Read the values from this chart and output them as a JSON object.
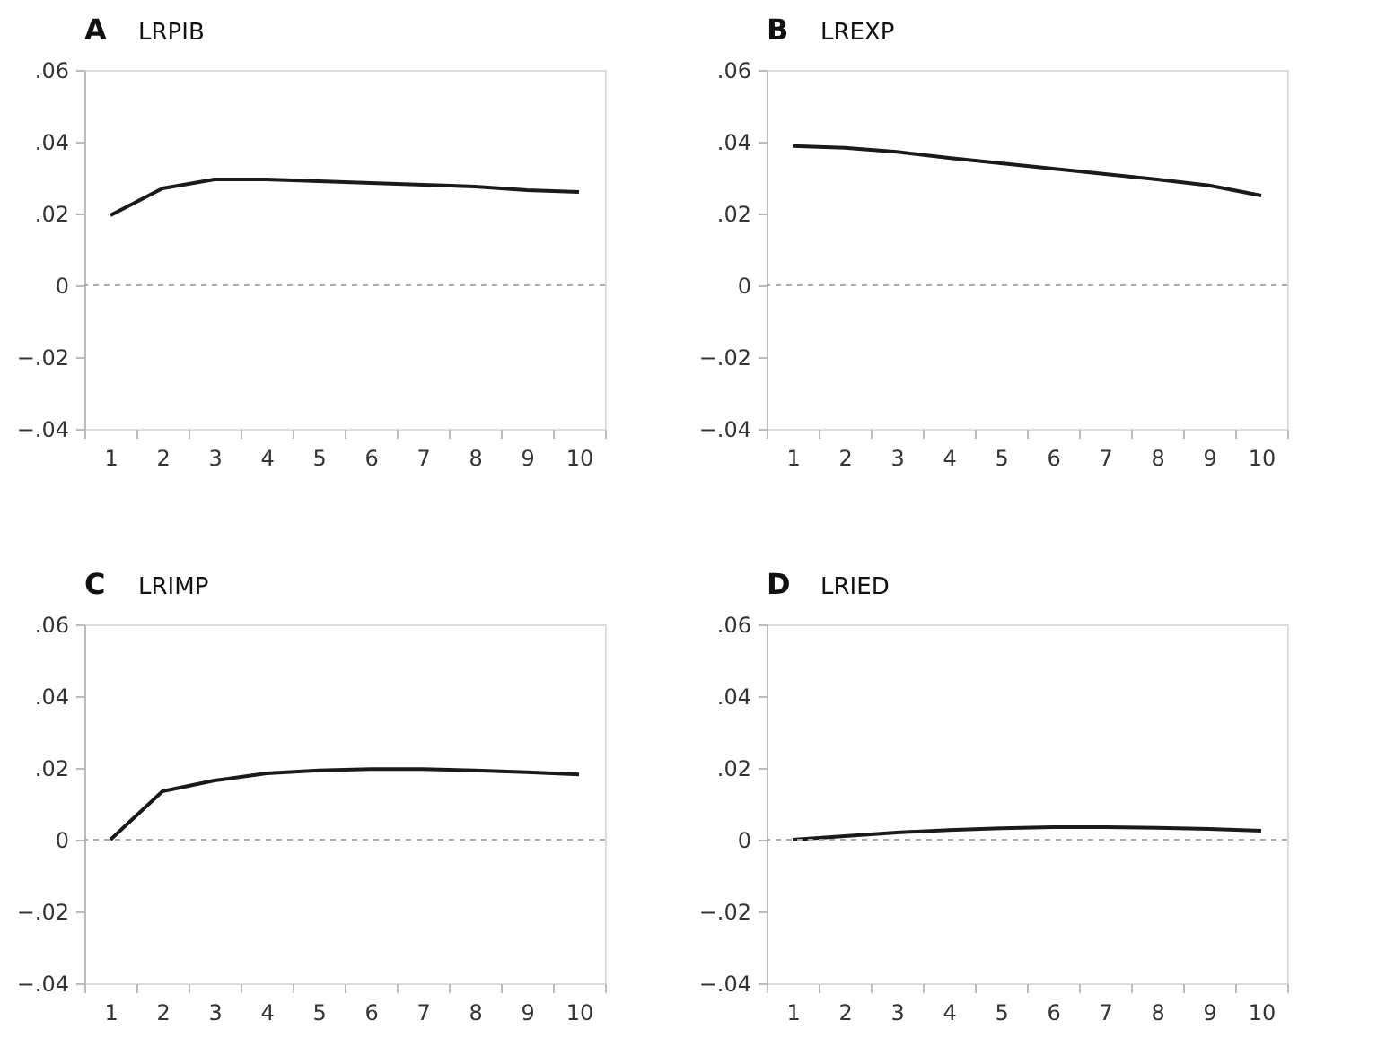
{
  "chart_data": [
    {
      "type": "line",
      "title": "A",
      "subtitle": "LRPIB",
      "categories": [
        "1",
        "2",
        "3",
        "4",
        "5",
        "6",
        "7",
        "8",
        "9",
        "10"
      ],
      "series": [
        {
          "color": "#1a1a1a",
          "values": [
            0.0195,
            0.027,
            0.0295,
            0.0295,
            0.029,
            0.0285,
            0.028,
            0.0275,
            0.0265,
            0.026
          ]
        }
      ],
      "ylim": [
        -0.04,
        0.06
      ],
      "yticks": [
        {
          "value": -0.04,
          "label": "−.04"
        },
        {
          "value": -0.02,
          "label": "−.02"
        },
        0,
        {
          "value": 0.02,
          "label": ".02"
        },
        {
          "value": 0.04,
          "label": ".04"
        },
        {
          "value": 0.06,
          "label": ".06"
        }
      ],
      "ref_lines": [
        {
          "axis": "y",
          "value": 0,
          "color": "#aaaaaa",
          "line_style": "dashed"
        }
      ],
      "grid": false,
      "marker": "none",
      "line_style": "solid"
    },
    {
      "type": "line",
      "title": "B",
      "subtitle": "LREXP",
      "categories": [
        "1",
        "2",
        "3",
        "4",
        "5",
        "6",
        "7",
        "8",
        "9",
        "10"
      ],
      "series": [
        {
          "color": "#1a1a1a",
          "values": [
            0.0388,
            0.0383,
            0.0372,
            0.0355,
            0.034,
            0.0325,
            0.031,
            0.0295,
            0.0278,
            0.025
          ]
        }
      ],
      "ylim": [
        -0.04,
        0.06
      ],
      "yticks": [
        {
          "value": -0.04,
          "label": "−.04"
        },
        {
          "value": -0.02,
          "label": "−.02"
        },
        0,
        {
          "value": 0.02,
          "label": ".02"
        },
        {
          "value": 0.04,
          "label": ".04"
        },
        {
          "value": 0.06,
          "label": ".06"
        }
      ],
      "ref_lines": [
        {
          "axis": "y",
          "value": 0,
          "color": "#aaaaaa",
          "line_style": "dashed"
        }
      ],
      "grid": false,
      "marker": "none",
      "line_style": "solid"
    },
    {
      "type": "line",
      "title": "C",
      "subtitle": "LRIMP",
      "categories": [
        "1",
        "2",
        "3",
        "4",
        "5",
        "6",
        "7",
        "8",
        "9",
        "10"
      ],
      "series": [
        {
          "color": "#1a1a1a",
          "values": [
            0,
            0.0135,
            0.0165,
            0.0185,
            0.0193,
            0.0197,
            0.0197,
            0.0193,
            0.0188,
            0.0182
          ]
        }
      ],
      "ylim": [
        -0.04,
        0.06
      ],
      "yticks": [
        {
          "value": -0.04,
          "label": "−.04"
        },
        {
          "value": -0.02,
          "label": "−.02"
        },
        0,
        {
          "value": 0.02,
          "label": ".02"
        },
        {
          "value": 0.04,
          "label": ".04"
        },
        {
          "value": 0.06,
          "label": ".06"
        }
      ],
      "ref_lines": [
        {
          "axis": "y",
          "value": 0,
          "color": "#aaaaaa",
          "line_style": "dashed"
        }
      ],
      "grid": false,
      "marker": "none",
      "line_style": "solid"
    },
    {
      "type": "line",
      "title": "D",
      "subtitle": "LRIED",
      "categories": [
        "1",
        "2",
        "3",
        "4",
        "5",
        "6",
        "7",
        "8",
        "9",
        "10"
      ],
      "series": [
        {
          "color": "#1a1a1a",
          "values": [
            0,
            0.001,
            0.002,
            0.0027,
            0.0032,
            0.0035,
            0.0035,
            0.0033,
            0.003,
            0.0025
          ]
        }
      ],
      "ylim": [
        -0.04,
        0.06
      ],
      "yticks": [
        {
          "value": -0.04,
          "label": "−.04"
        },
        {
          "value": -0.02,
          "label": "−.02"
        },
        0,
        {
          "value": 0.02,
          "label": ".02"
        },
        {
          "value": 0.04,
          "label": ".04"
        },
        {
          "value": 0.06,
          "label": ".06"
        }
      ],
      "ref_lines": [
        {
          "axis": "y",
          "value": 0,
          "color": "#aaaaaa",
          "line_style": "dashed"
        }
      ],
      "grid": false,
      "marker": "none",
      "line_style": "solid"
    }
  ]
}
